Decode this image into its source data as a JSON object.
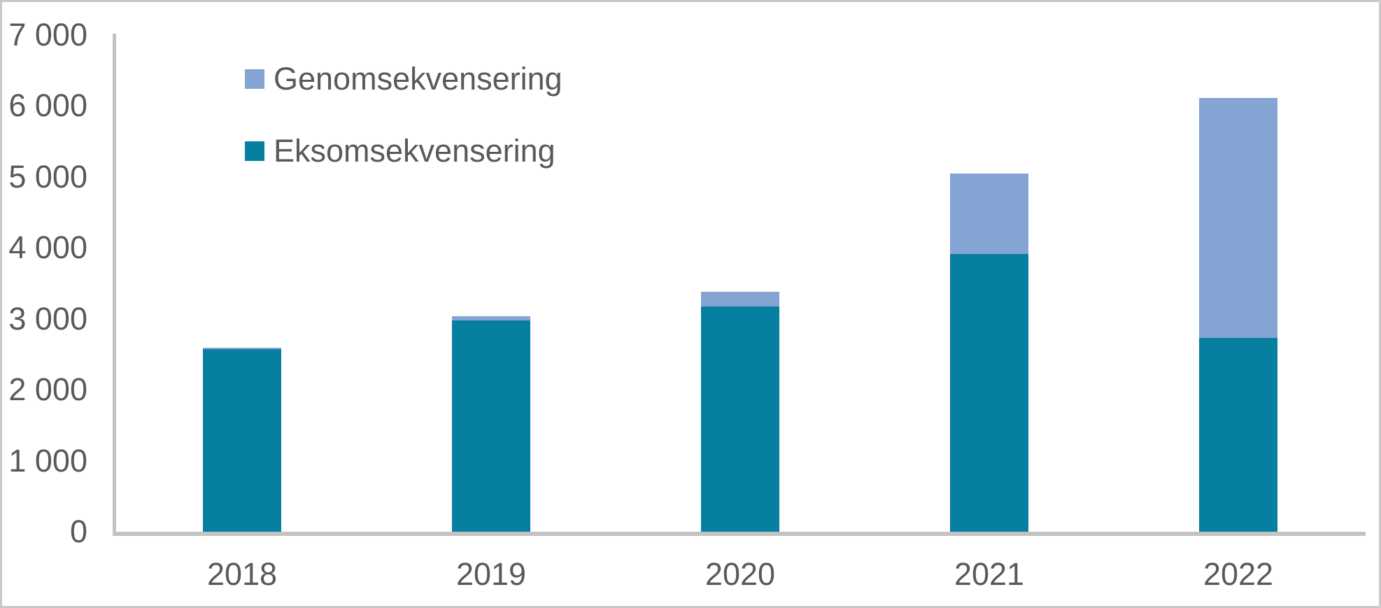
{
  "window": {
    "background_color": "#ffffff",
    "frame_border_color": "#c9c9c9"
  },
  "chart_data": {
    "type": "bar",
    "stacked": true,
    "title": "",
    "xlabel": "",
    "ylabel": "",
    "categories": [
      "2018",
      "2019",
      "2020",
      "2021",
      "2022"
    ],
    "series": [
      {
        "name": "Eksomsekvensering",
        "color": "#077fa0",
        "values": [
          2570,
          2980,
          3170,
          3910,
          2730
        ]
      },
      {
        "name": "Genomsekvensering",
        "color": "#84a4d4",
        "values": [
          25,
          60,
          210,
          1140,
          3380
        ]
      }
    ],
    "totals": [
      2595,
      3040,
      3380,
      5050,
      6110
    ],
    "ylim": [
      0,
      7000
    ],
    "ytick_values": [
      0,
      1000,
      2000,
      3000,
      4000,
      5000,
      6000,
      7000
    ],
    "ytick_labels": [
      "0",
      "1 000",
      "2 000",
      "3 000",
      "4 000",
      "5 000",
      "6 000",
      "7 000"
    ],
    "grid": false,
    "legend_position": "inside-top-left",
    "axis_color": "#c3c3c3",
    "tick_label_color": "#595959"
  },
  "legend": {
    "items": [
      {
        "label": "Genomsekvensering",
        "color": "#84a4d4"
      },
      {
        "label": "Eksomsekvensering",
        "color": "#077fa0"
      }
    ]
  }
}
